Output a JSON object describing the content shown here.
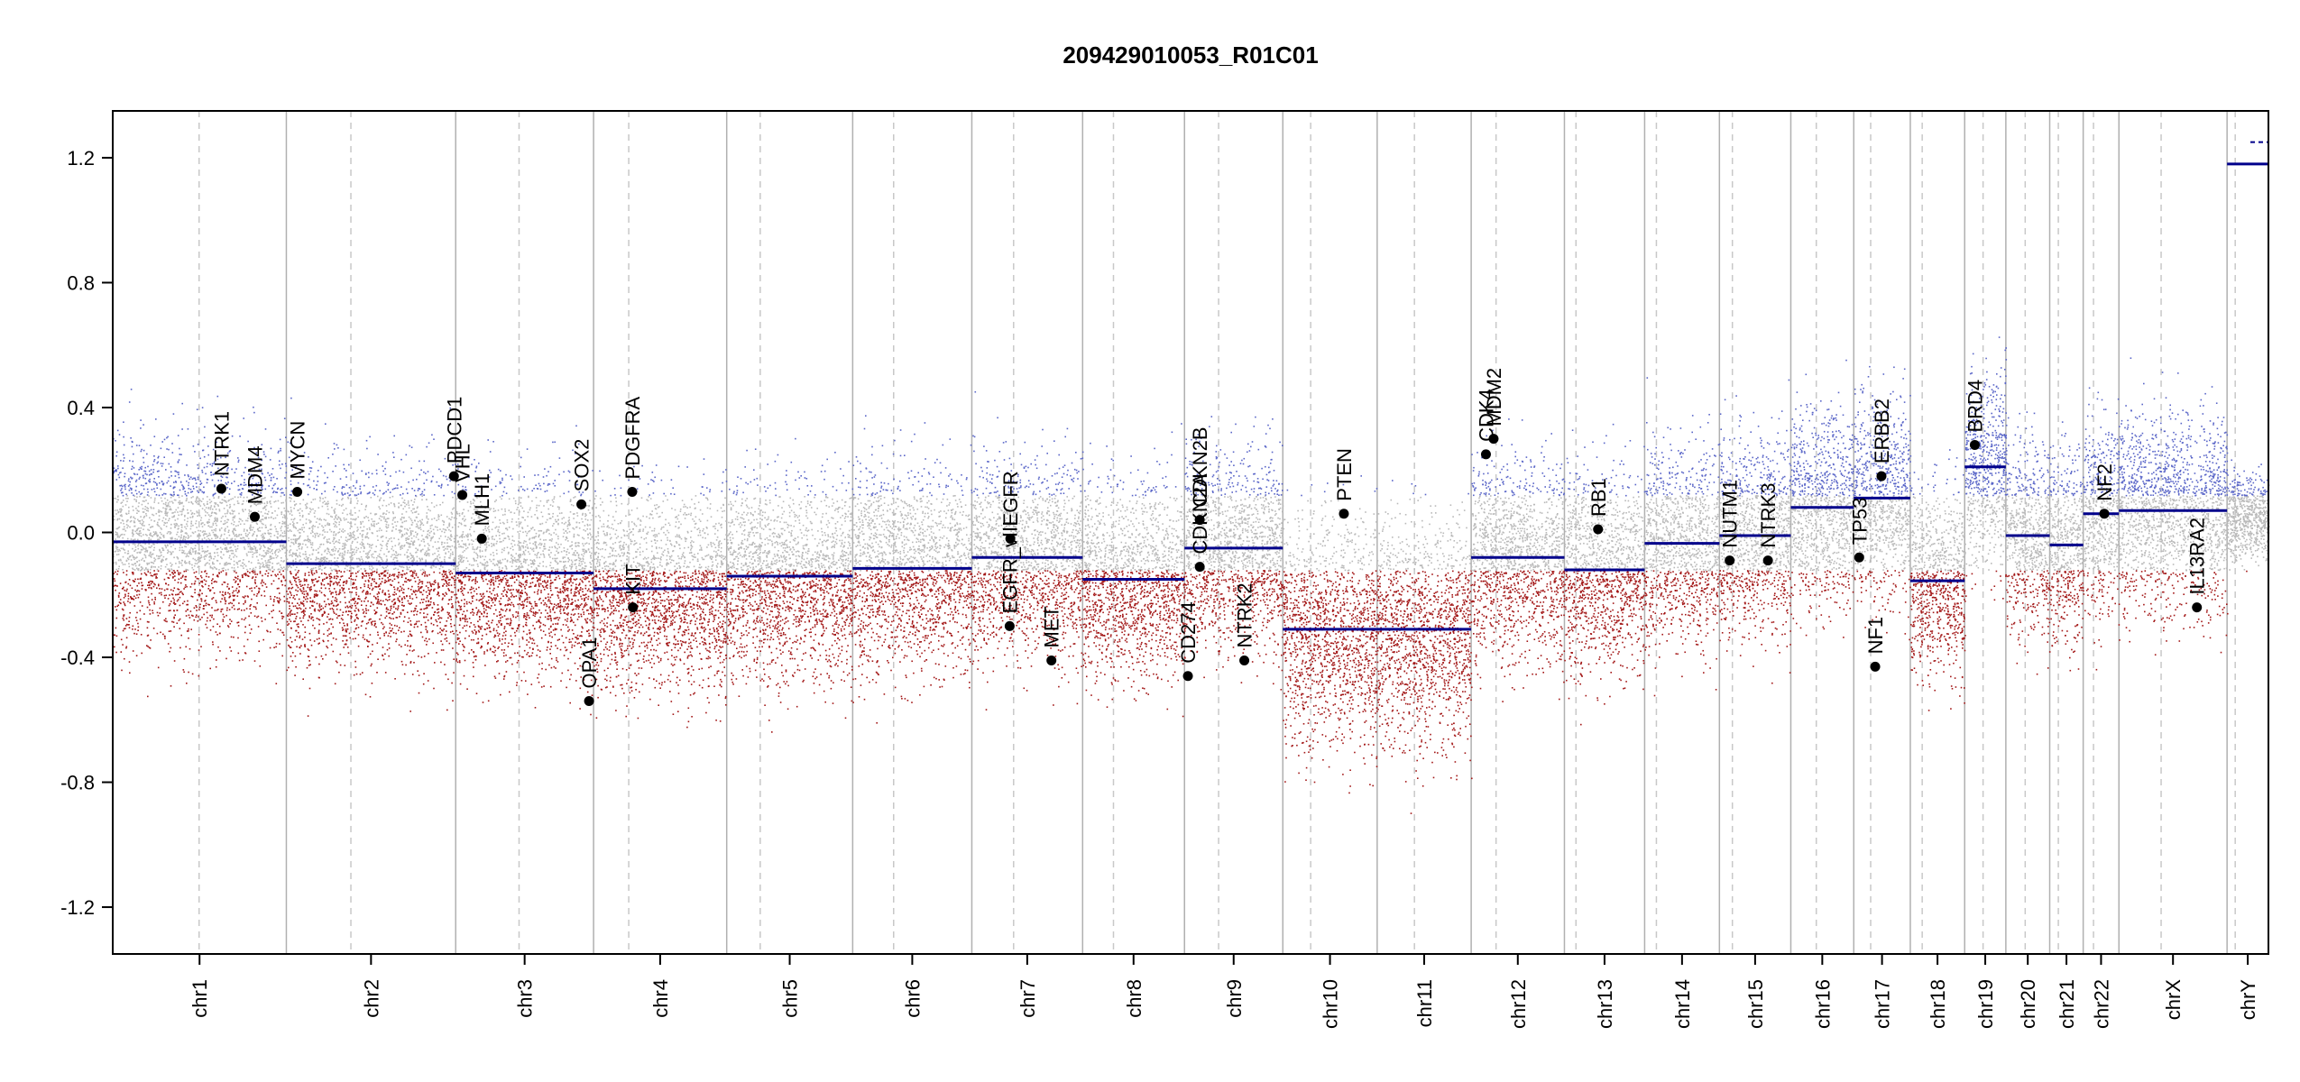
{
  "chart_data": {
    "type": "scatter",
    "title": "209429010053_R01C01",
    "xlabel": "",
    "ylabel": "",
    "ylim": [
      -1.35,
      1.35
    ],
    "yticks": [
      {
        "value": 1.2,
        "label": "1.2"
      },
      {
        "value": 0.8,
        "label": "0.8"
      },
      {
        "value": 0.4,
        "label": "0.4"
      },
      {
        "value": 0.0,
        "label": "0.0"
      },
      {
        "value": -0.4,
        "label": "-0.4"
      },
      {
        "value": -0.8,
        "label": "-0.8"
      },
      {
        "value": -1.2,
        "label": "-1.2"
      }
    ],
    "grid": false,
    "colors": {
      "gain": "#5a66c8",
      "neutral": "#b9b9b9",
      "loss": "#a31818",
      "segment": "#00008b",
      "gene_marker": "#000000",
      "chromosome_border": "#b0b0b0",
      "centromere": "#c8c8c8"
    },
    "chromosomes": [
      {
        "name": "chr1",
        "label": "chr1",
        "start": 0.0,
        "end": 249.3,
        "centromere": 124.0,
        "segment_mean": -0.03
      },
      {
        "name": "chr2",
        "label": "chr2",
        "start": 249.3,
        "end": 492.5,
        "centromere": 342.0,
        "segment_mean": -0.1
      },
      {
        "name": "chr3",
        "label": "chr3",
        "start": 492.5,
        "end": 690.5,
        "centromere": 583.5,
        "segment_mean": -0.13
      },
      {
        "name": "chr4",
        "label": "chr4",
        "start": 690.5,
        "end": 881.7,
        "centromere": 741.0,
        "segment_mean": -0.18
      },
      {
        "name": "chr5",
        "label": "chr5",
        "start": 881.7,
        "end": 1062.6,
        "centromere": 929.8,
        "segment_mean": -0.14
      },
      {
        "name": "chr6",
        "label": "chr6",
        "start": 1062.6,
        "end": 1233.7,
        "centromere": 1121.4,
        "segment_mean": -0.115
      },
      {
        "name": "chr7",
        "label": "chr7",
        "start": 1233.7,
        "end": 1392.8,
        "centromere": 1293.7,
        "segment_mean": -0.08
      },
      {
        "name": "chr8",
        "label": "chr8",
        "start": 1392.8,
        "end": 1539.1,
        "centromere": 1437.1,
        "segment_mean": -0.15
      },
      {
        "name": "chr9",
        "label": "chr9",
        "start": 1539.1,
        "end": 1680.3,
        "centromere": 1588.1,
        "segment_mean": -0.05
      },
      {
        "name": "chr10",
        "label": "chr10",
        "start": 1680.3,
        "end": 1815.8,
        "centromere": 1720.3,
        "segment_mean": -0.31
      },
      {
        "name": "chr11",
        "label": "chr11",
        "start": 1815.8,
        "end": 1950.8,
        "centromere": 1869.3,
        "segment_mean": -0.31
      },
      {
        "name": "chr12",
        "label": "chr12",
        "start": 1950.8,
        "end": 2084.7,
        "centromere": 1986.5,
        "segment_mean": -0.08
      },
      {
        "name": "chr13",
        "label": "chr13",
        "start": 2084.7,
        "end": 2199.9,
        "centromere": 2101.3,
        "segment_mean": -0.12
      },
      {
        "name": "chr14",
        "label": "chr14",
        "start": 2199.9,
        "end": 2307.3,
        "centromere": 2216.8,
        "segment_mean": -0.035
      },
      {
        "name": "chr15",
        "label": "chr15",
        "start": 2307.3,
        "end": 2409.8,
        "centromere": 2325.9,
        "segment_mean": -0.01
      },
      {
        "name": "chr16",
        "label": "chr16",
        "start": 2409.8,
        "end": 2500.2,
        "centromere": 2446.4,
        "segment_mean": 0.08
      },
      {
        "name": "chr17",
        "label": "chr17",
        "start": 2500.2,
        "end": 2581.4,
        "centromere": 2524.5,
        "segment_mean": 0.11
      },
      {
        "name": "chr18",
        "label": "chr18",
        "start": 2581.4,
        "end": 2659.5,
        "centromere": 2598.5,
        "segment_mean": -0.155
      },
      {
        "name": "chr19",
        "label": "chr19",
        "start": 2659.5,
        "end": 2718.6,
        "centromere": 2685.9,
        "segment_mean": 0.21
      },
      {
        "name": "chr20",
        "label": "chr20",
        "start": 2718.6,
        "end": 2781.6,
        "centromere": 2746.4,
        "segment_mean": -0.01
      },
      {
        "name": "chr21",
        "label": "chr21",
        "start": 2781.6,
        "end": 2829.7,
        "centromere": 2794.0,
        "segment_mean": -0.04
      },
      {
        "name": "chr22",
        "label": "chr22",
        "start": 2829.7,
        "end": 2881.0,
        "centromere": 2844.5,
        "segment_mean": 0.06
      },
      {
        "name": "chrX",
        "label": "chrX",
        "start": 2881.0,
        "end": 3036.3,
        "centromere": 2941.6,
        "segment_mean": 0.07
      },
      {
        "name": "chrY",
        "label": "chrY",
        "start": 3036.3,
        "end": 3095.7,
        "centromere": 3048.0,
        "segment_mean": 1.18
      }
    ],
    "extra_segments": [
      {
        "chromosome": "chrY",
        "value": 1.25
      }
    ],
    "genes": [
      {
        "label": "NTRK1",
        "x": 156.0,
        "y": 0.14
      },
      {
        "label": "MDM4",
        "x": 204.0,
        "y": 0.05
      },
      {
        "label": "MYCN",
        "x": 265.0,
        "y": 0.13
      },
      {
        "label": "PDCD1",
        "x": 490.0,
        "y": 0.18
      },
      {
        "label": "VHL",
        "x": 502.0,
        "y": 0.12
      },
      {
        "label": "MLH1",
        "x": 530.0,
        "y": -0.02
      },
      {
        "label": "SOX2",
        "x": 673.0,
        "y": 0.09
      },
      {
        "label": "OPA1",
        "x": 684.0,
        "y": -0.54
      },
      {
        "label": "PDGFRA",
        "x": 746.0,
        "y": 0.13
      },
      {
        "label": "KIT",
        "x": 747.0,
        "y": -0.24
      },
      {
        "label": "EGFR",
        "x": 1289.0,
        "y": -0.02
      },
      {
        "label": "EGFR_vIII",
        "x": 1288.0,
        "y": -0.3
      },
      {
        "label": "MET",
        "x": 1348.0,
        "y": -0.41
      },
      {
        "label": "CDKN2B",
        "x": 1561.0,
        "y": 0.04
      },
      {
        "label": "CDKN2A",
        "x": 1561.0,
        "y": -0.11
      },
      {
        "label": "CD274",
        "x": 1544.0,
        "y": -0.46
      },
      {
        "label": "NTRK2",
        "x": 1625.0,
        "y": -0.41
      },
      {
        "label": "PTEN",
        "x": 1768.0,
        "y": 0.06
      },
      {
        "label": "CDK4",
        "x": 1972.0,
        "y": 0.25
      },
      {
        "label": "MDM2",
        "x": 1983.0,
        "y": 0.3
      },
      {
        "label": "RB1",
        "x": 2133.0,
        "y": 0.01
      },
      {
        "label": "NUTM1",
        "x": 2322.0,
        "y": -0.09
      },
      {
        "label": "NTRK3",
        "x": 2377.0,
        "y": -0.09
      },
      {
        "label": "TP53",
        "x": 2508.0,
        "y": -0.08
      },
      {
        "label": "ERBB2",
        "x": 2540.0,
        "y": 0.18
      },
      {
        "label": "NF1",
        "x": 2531.0,
        "y": -0.43
      },
      {
        "label": "BRD4",
        "x": 2674.0,
        "y": 0.28
      },
      {
        "label": "NF2",
        "x": 2860.0,
        "y": 0.06
      },
      {
        "label": "IL13RA2",
        "x": 2993.0,
        "y": -0.24
      }
    ]
  }
}
